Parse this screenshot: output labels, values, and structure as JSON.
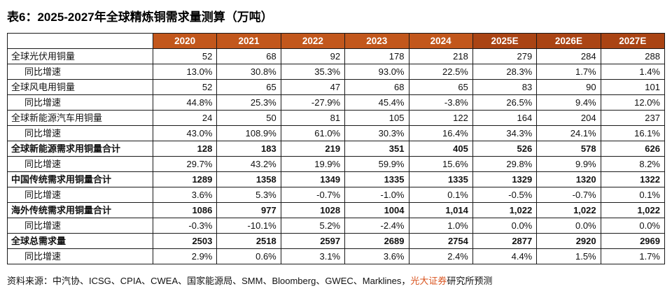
{
  "title": "表6：2025-2027年全球精炼铜需求量测算（万吨）",
  "colors": {
    "header-bg": "#C2571C",
    "header-forecast-bg": "#AA4414",
    "brand-text": "#D9531E",
    "border": "#1a1a1a"
  },
  "table": {
    "columns": [
      "2020",
      "2021",
      "2022",
      "2023",
      "2024",
      "2025E",
      "2026E",
      "2027E"
    ],
    "rows": [
      {
        "label": "全球光伏用铜量",
        "indent": false,
        "bold": false,
        "values": [
          "52",
          "68",
          "92",
          "178",
          "218",
          "279",
          "284",
          "288"
        ]
      },
      {
        "label": "同比增速",
        "indent": true,
        "bold": false,
        "values": [
          "13.0%",
          "30.8%",
          "35.3%",
          "93.0%",
          "22.5%",
          "28.3%",
          "1.7%",
          "1.4%"
        ]
      },
      {
        "label": "全球风电用铜量",
        "indent": false,
        "bold": false,
        "values": [
          "52",
          "65",
          "47",
          "68",
          "65",
          "83",
          "90",
          "101"
        ]
      },
      {
        "label": "同比增速",
        "indent": true,
        "bold": false,
        "values": [
          "44.8%",
          "25.3%",
          "-27.9%",
          "45.4%",
          "-3.8%",
          "26.5%",
          "9.4%",
          "12.0%"
        ]
      },
      {
        "label": "全球新能源汽车用铜量",
        "indent": false,
        "bold": false,
        "values": [
          "24",
          "50",
          "81",
          "105",
          "122",
          "164",
          "204",
          "237"
        ]
      },
      {
        "label": "同比增速",
        "indent": true,
        "bold": false,
        "values": [
          "43.0%",
          "108.9%",
          "61.0%",
          "30.3%",
          "16.4%",
          "34.3%",
          "24.1%",
          "16.1%"
        ]
      },
      {
        "label": "全球新能源需求用铜量合计",
        "indent": false,
        "bold": true,
        "values": [
          "128",
          "183",
          "219",
          "351",
          "405",
          "526",
          "578",
          "626"
        ]
      },
      {
        "label": "同比增速",
        "indent": true,
        "bold": false,
        "values": [
          "29.7%",
          "43.2%",
          "19.9%",
          "59.9%",
          "15.6%",
          "29.8%",
          "9.9%",
          "8.2%"
        ]
      },
      {
        "label": "中国传统需求用铜量合计",
        "indent": false,
        "bold": true,
        "values": [
          "1289",
          "1358",
          "1349",
          "1335",
          "1335",
          "1329",
          "1320",
          "1322"
        ]
      },
      {
        "label": "同比增速",
        "indent": true,
        "bold": false,
        "values": [
          "3.6%",
          "5.3%",
          "-0.7%",
          "-1.0%",
          "0.1%",
          "-0.5%",
          "-0.7%",
          "0.1%"
        ]
      },
      {
        "label": "海外传统需求用铜量合计",
        "indent": false,
        "bold": true,
        "values": [
          "1086",
          "977",
          "1028",
          "1004",
          "1,014",
          "1,022",
          "1,022",
          "1,022"
        ]
      },
      {
        "label": "同比增速",
        "indent": true,
        "bold": false,
        "values": [
          "-0.3%",
          "-10.1%",
          "5.2%",
          "-2.4%",
          "1.0%",
          "0.0%",
          "0.0%",
          "0.0%"
        ]
      },
      {
        "label": "全球总需求量",
        "indent": false,
        "bold": true,
        "values": [
          "2503",
          "2518",
          "2597",
          "2689",
          "2754",
          "2877",
          "2920",
          "2969"
        ]
      },
      {
        "label": "同比增速",
        "indent": true,
        "bold": false,
        "values": [
          "2.9%",
          "0.6%",
          "3.1%",
          "3.6%",
          "2.4%",
          "4.4%",
          "1.5%",
          "1.7%"
        ]
      }
    ]
  },
  "footer": {
    "prefix": "资料来源：中汽协、ICSG、CPIA、CWEA、国家能源局、SMM、Bloomberg、GWEC、Marklines，",
    "brand": "光大证券",
    "suffix": "研究所预测"
  }
}
